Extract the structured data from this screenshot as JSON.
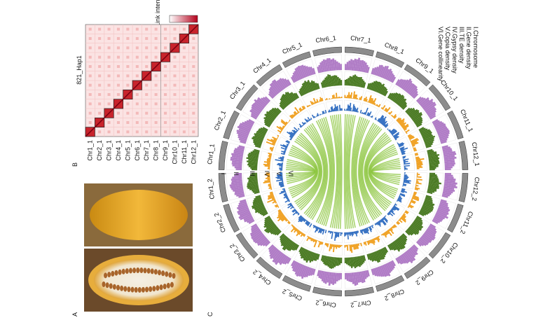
{
  "panels": {
    "a": "A",
    "b": "B",
    "c": "C"
  },
  "heatmap": {
    "title": "821_Hap1",
    "legend": "Link intensity",
    "chromosomes": [
      "Chr1_1",
      "Chr2_1",
      "Chr3_1",
      "Chr4_1",
      "Chr5_1",
      "Chr6_1",
      "Chr7_1",
      "Chr8_1",
      "Chr9_1",
      "Chr10_1",
      "Chr11_1",
      "Chr12_1"
    ]
  },
  "circos": {
    "chromosomes": [
      "Chr1_1",
      "Chr2_1",
      "Chr3_1",
      "Chr4_1",
      "Chr5_1",
      "Chr6_1",
      "Chr7_1",
      "Chr8_1",
      "Chr9_1",
      "Chr10_1",
      "Chr11_1",
      "Chr12_1",
      "Chr12_2",
      "Chr11_2",
      "Chr10_2",
      "Chr9_2",
      "Chr8_2",
      "Chr7_2",
      "Chr6_2",
      "Chr5_2",
      "Chr4_2",
      "Chr3_2",
      "Chr2_2",
      "Chr1_2"
    ],
    "track_labels": [
      "I",
      "II",
      "III",
      "IV",
      "V",
      "VI"
    ],
    "legend": [
      "I.Chromosome",
      "II.Gene density",
      "III.TE density",
      "IV.Gypsy density",
      "V.Copia density",
      "VI.Gene collinearity"
    ]
  }
}
